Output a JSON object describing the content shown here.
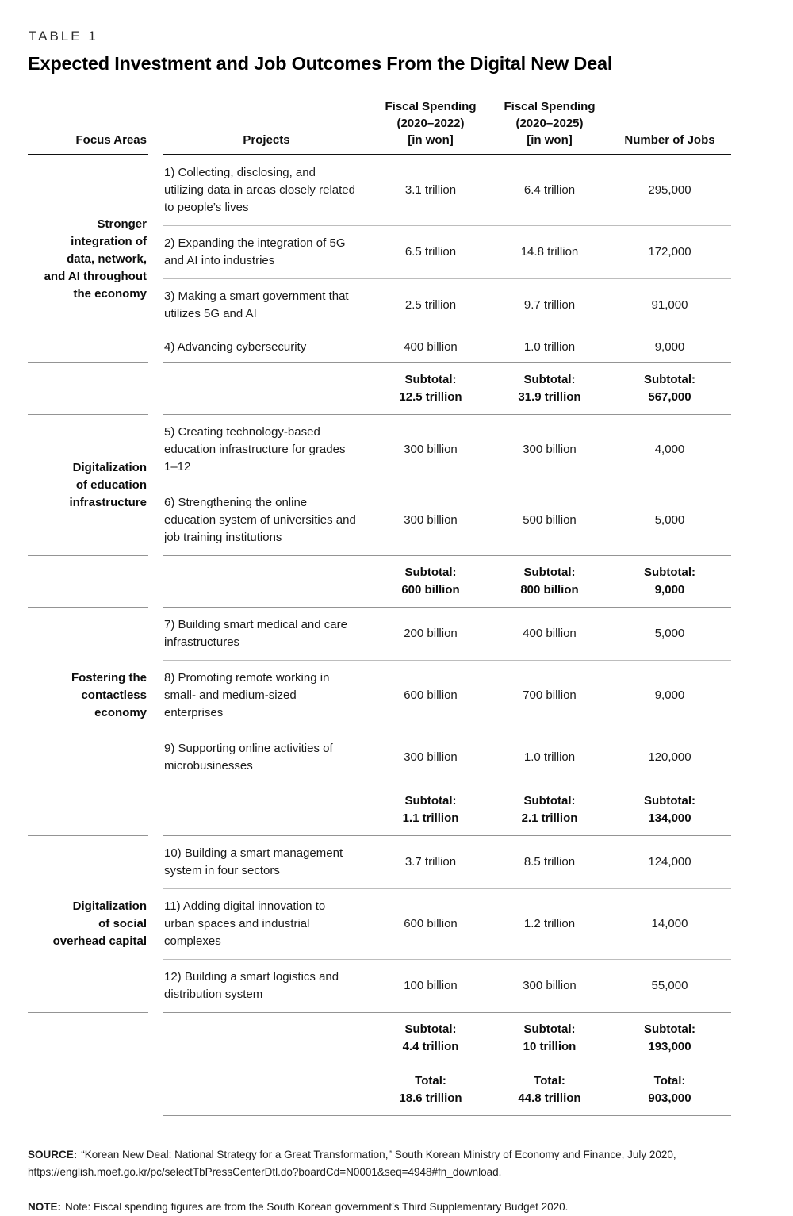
{
  "page": {
    "table_label": "TABLE 1",
    "title": "Expected Investment and Job Outcomes From the Digital New Deal"
  },
  "columns": {
    "focus": "Focus Areas",
    "projects": "Projects",
    "fiscal_2022": "Fiscal Spending\n(2020–2022)\n[in won]",
    "fiscal_2025": "Fiscal Spending\n(2020–2025)\n[in won]",
    "jobs": "Number of Jobs"
  },
  "sections": [
    {
      "focus_area": "Stronger\nintegration of\ndata, network,\nand AI throughout\nthe economy",
      "projects": [
        {
          "name": "1) Collecting, disclosing, and utilizing data in areas closely related to people’s lives",
          "spend_2022": "3.1 trillion",
          "spend_2025": "6.4 trillion",
          "jobs": "295,000"
        },
        {
          "name": "2) Expanding the integration of 5G and AI into industries",
          "spend_2022": "6.5 trillion",
          "spend_2025": "14.8 trillion",
          "jobs": "172,000"
        },
        {
          "name": "3) Making a smart government that utilizes 5G and AI",
          "spend_2022": "2.5 trillion",
          "spend_2025": "9.7 trillion",
          "jobs": "91,000"
        },
        {
          "name": "4) Advancing cybersecurity",
          "spend_2022": "400 billion",
          "spend_2025": "1.0 trillion",
          "jobs": "9,000"
        }
      ],
      "subtotal": {
        "label": "Subtotal:",
        "spend_2022": "12.5 trillion",
        "spend_2025": "31.9 trillion",
        "jobs": "567,000"
      }
    },
    {
      "focus_area": "Digitalization\nof education\ninfrastructure",
      "projects": [
        {
          "name": "5) Creating technology-based education infrastructure for grades 1–12",
          "spend_2022": "300 billion",
          "spend_2025": "300 billion",
          "jobs": "4,000"
        },
        {
          "name": "6) Strengthening the online education system of universities and job training institutions",
          "spend_2022": "300 billion",
          "spend_2025": "500 billion",
          "jobs": "5,000"
        }
      ],
      "subtotal": {
        "label": "Subtotal:",
        "spend_2022": "600 billion",
        "spend_2025": "800 billion",
        "jobs": "9,000"
      }
    },
    {
      "focus_area": "Fostering the\ncontactless\neconomy",
      "projects": [
        {
          "name": "7) Building smart medical and care infrastructures",
          "spend_2022": "200 billion",
          "spend_2025": "400 billion",
          "jobs": "5,000"
        },
        {
          "name": "8) Promoting remote working in small- and medium-sized enterprises",
          "spend_2022": "600 billion",
          "spend_2025": "700 billion",
          "jobs": "9,000"
        },
        {
          "name": "9) Supporting online activities of microbusinesses",
          "spend_2022": "300 billion",
          "spend_2025": "1.0 trillion",
          "jobs": "120,000"
        }
      ],
      "subtotal": {
        "label": "Subtotal:",
        "spend_2022": "1.1 trillion",
        "spend_2025": "2.1 trillion",
        "jobs": "134,000"
      }
    },
    {
      "focus_area": "Digitalization\nof social\noverhead capital",
      "projects": [
        {
          "name": "10) Building a smart management system in four sectors",
          "spend_2022": "3.7 trillion",
          "spend_2025": "8.5 trillion",
          "jobs": "124,000"
        },
        {
          "name": "11) Adding digital innovation to urban spaces and industrial complexes",
          "spend_2022": "600 billion",
          "spend_2025": "1.2 trillion",
          "jobs": "14,000"
        },
        {
          "name": "12) Building a smart logistics and distribution system",
          "spend_2022": "100 billion",
          "spend_2025": "300 billion",
          "jobs": "55,000"
        }
      ],
      "subtotal": {
        "label": "Subtotal:",
        "spend_2022": "4.4 trillion",
        "spend_2025": "10 trillion",
        "jobs": "193,000"
      }
    }
  ],
  "total": {
    "label": "Total:",
    "spend_2022": "18.6 trillion",
    "spend_2025": "44.8 trillion",
    "jobs": "903,000"
  },
  "footnotes": {
    "source_label": "SOURCE:",
    "source_text": "“Korean New Deal: National Strategy for a Great Transformation,” South Korean Ministry of Economy and Finance, July 2020, https://english.moef.go.kr/pc/selectTbPressCenterDtl.do?boardCd=N0001&seq=4948#fn_download.",
    "note_label": "NOTE:",
    "note_text": "Note: Fiscal spending figures are from the South Korean government’s Third Supplementary Budget 2020."
  }
}
